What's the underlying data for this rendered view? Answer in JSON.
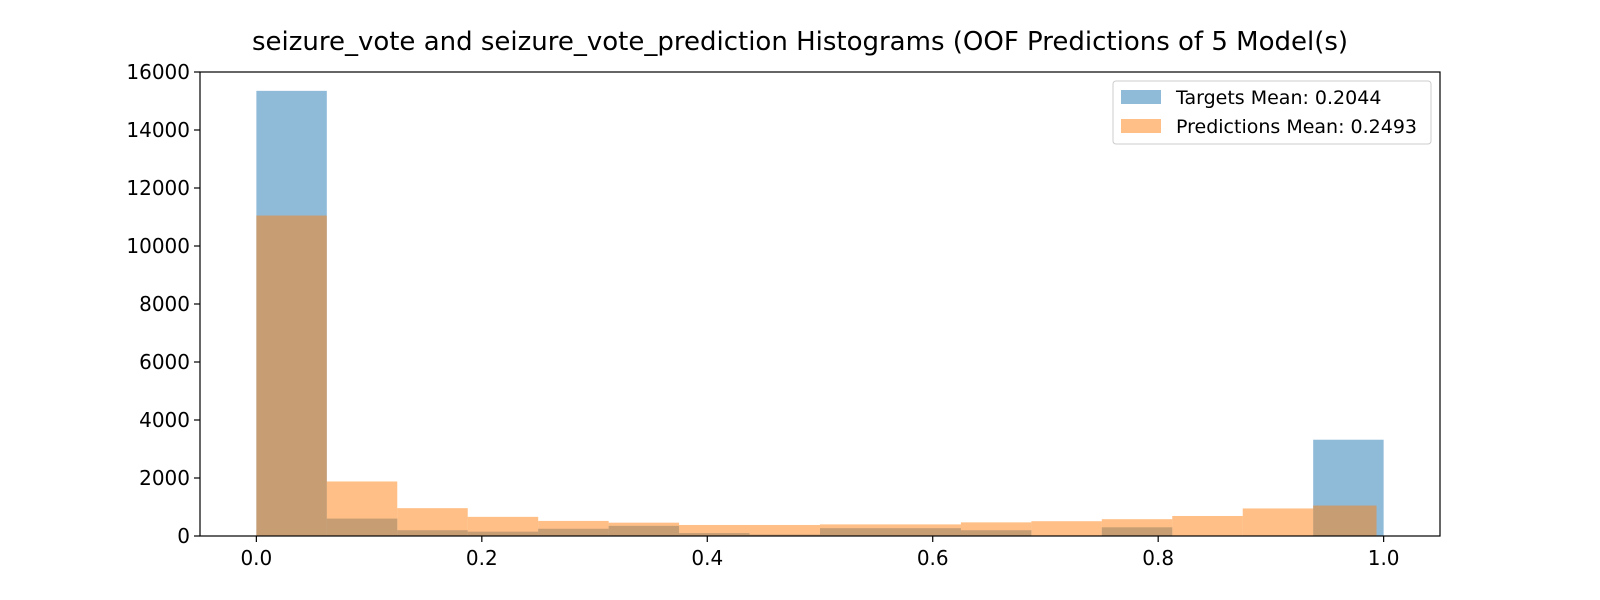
{
  "chart_data": {
    "type": "histogram",
    "title": "seizure_vote and seizure_vote_prediction Histograms (OOF Predictions of 5 Model(s)",
    "xlabel": "",
    "ylabel": "",
    "xlim": [
      -0.05,
      1.05
    ],
    "ylim": [
      0,
      16000
    ],
    "xticks": [
      0.0,
      0.2,
      0.4,
      0.6,
      0.8,
      1.0
    ],
    "xtick_labels": [
      "0.0",
      "0.2",
      "0.4",
      "0.6",
      "0.8",
      "1.0"
    ],
    "yticks": [
      0,
      2000,
      4000,
      6000,
      8000,
      10000,
      12000,
      14000,
      16000
    ],
    "ytick_labels": [
      "0",
      "2000",
      "4000",
      "6000",
      "8000",
      "10000",
      "12000",
      "14000",
      "16000"
    ],
    "grid": false,
    "legend_position": "top-right",
    "series": [
      {
        "name": "Targets Mean: 0.2044",
        "color": "#1f77b4",
        "alpha": 0.5,
        "bin_edges": [
          0.0,
          0.0625,
          0.125,
          0.1875,
          0.25,
          0.3125,
          0.375,
          0.4375,
          0.5,
          0.5625,
          0.625,
          0.6875,
          0.75,
          0.8125,
          0.875,
          0.9375,
          1.0
        ],
        "counts": [
          15350,
          600,
          200,
          150,
          250,
          350,
          100,
          50,
          270,
          270,
          200,
          0,
          300,
          0,
          0,
          3320
        ]
      },
      {
        "name": "Predictions Mean: 0.2493",
        "color": "#ff7f0e",
        "alpha": 0.5,
        "bin_edges": [
          0.0,
          0.0625,
          0.125,
          0.1875,
          0.25,
          0.3125,
          0.375,
          0.4375,
          0.5,
          0.5625,
          0.625,
          0.6875,
          0.75,
          0.8125,
          0.875,
          0.9375,
          0.9937
        ],
        "counts": [
          11050,
          1880,
          960,
          660,
          520,
          460,
          380,
          380,
          400,
          400,
          470,
          510,
          580,
          690,
          950,
          1050
        ]
      }
    ]
  }
}
